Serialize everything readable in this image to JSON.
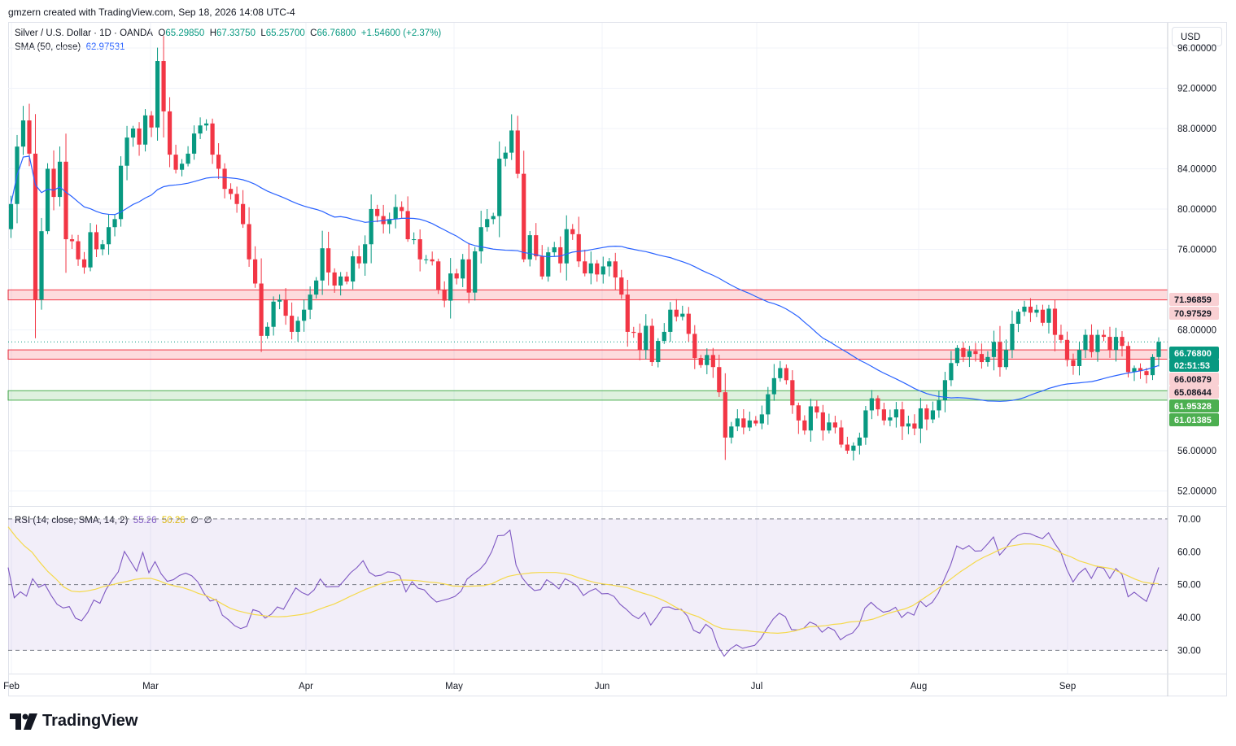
{
  "header": {
    "credit": "gmzern created with TradingView.com, Sep 18, 2026 14:08 UTC-4"
  },
  "legend": {
    "symbol": "Silver / U.S. Dollar · 1D · OANDA",
    "open_label": "O",
    "open": "65.29850",
    "high_label": "H",
    "high": "67.33750",
    "low_label": "L",
    "low": "65.25700",
    "close_label": "C",
    "close": "66.76800",
    "change": "+1.54600 (+2.37%)",
    "sma_label": "SMA (50, close)",
    "sma_value": "62.97531",
    "rsi_label": "RSI (14, close, SMA, 14, 2)",
    "rsi_value": "55.26",
    "rsi_sma_value": "50.26",
    "rsi_extra1": "∅",
    "rsi_extra2": "∅"
  },
  "currency": "USD",
  "brand": "TradingView",
  "colors": {
    "up": "#089981",
    "down": "#f23645",
    "sma": "#2962ff",
    "rsi": "#7e57c2",
    "rsi_sma": "#f5d94a",
    "resistance_zone": "#f23645",
    "support_zone": "#4caf50"
  },
  "chart_data": [
    {
      "type": "candlestick",
      "title": "Silver / U.S. Dollar · 1D · OANDA",
      "x_tick_labels": [
        "Feb",
        "Mar",
        "Apr",
        "May",
        "Jun",
        "Jul",
        "Aug",
        "Sep"
      ],
      "y_tick_labels": [
        "96.00000",
        "92.00000",
        "88.00000",
        "84.00000",
        "80.00000",
        "76.00000",
        "68.00000",
        "56.00000",
        "52.00000"
      ],
      "ylim": [
        50.5,
        98.5
      ],
      "closes": [
        80.5,
        86.2,
        88.8,
        85.5,
        71.0,
        77.8,
        84.0,
        81.2,
        84.7,
        77.0,
        76.8,
        75.0,
        74.2,
        77.7,
        76.0,
        76.5,
        78.2,
        79.0,
        84.3,
        87.1,
        88.0,
        86.4,
        89.3,
        88.1,
        94.7,
        89.7,
        85.4,
        83.9,
        84.5,
        85.5,
        87.5,
        88.3,
        88.5,
        85.4,
        84.0,
        82.0,
        81.5,
        80.5,
        78.5,
        75.0,
        72.6,
        67.4,
        68.3,
        70.8,
        71.0,
        69.4,
        67.8,
        68.9,
        70.0,
        71.5,
        72.9,
        76.1,
        73.7,
        72.4,
        73.3,
        72.8,
        75.3,
        74.6,
        76.5,
        80.0,
        79.3,
        78.5,
        79.0,
        80.2,
        79.8,
        77.0,
        77.0,
        75.0,
        75.0,
        74.8,
        72.0,
        70.9,
        73.6,
        73.1,
        75.0,
        71.7,
        75.8,
        78.2,
        79.0,
        79.3,
        85.0,
        85.6,
        87.8,
        83.5,
        75.0,
        77.4,
        75.3,
        73.3,
        75.7,
        76.2,
        74.6,
        78.0,
        77.5,
        74.8,
        73.6,
        74.6,
        73.5,
        74.3,
        74.8,
        73.2,
        71.5,
        67.8,
        67.7,
        66.0,
        68.4,
        64.8,
        66.9,
        67.8,
        70.0,
        69.3,
        69.6,
        67.6,
        65.2,
        64.5,
        65.5,
        64.3,
        61.8,
        57.3,
        58.4,
        59.2,
        58.3,
        59.0,
        58.7,
        59.6,
        61.6,
        63.2,
        64.2,
        63.0,
        60.5,
        59.0,
        58.0,
        60.4,
        59.8,
        58.0,
        58.8,
        58.3,
        56.6,
        56.0,
        56.5,
        57.3,
        60.0,
        61.2,
        60.1,
        59.0,
        59.3,
        60.1,
        58.4,
        58.7,
        58.2,
        60.2,
        59.1,
        60.0,
        61.0,
        63.0,
        64.7,
        66.2,
        65.3,
        65.9,
        65.6,
        64.8,
        65.3,
        66.8,
        64.3,
        66.0,
        68.6,
        69.8,
        70.3,
        69.7,
        70.0,
        68.7,
        70.1,
        67.5,
        67.0,
        65.0,
        64.4,
        66.0,
        67.5,
        65.8,
        67.5,
        67.3,
        66.0,
        67.3,
        66.4,
        63.8,
        64.2,
        63.9,
        63.5,
        65.3,
        66.8
      ]
    },
    {
      "type": "line",
      "series": [
        {
          "name": "SMA (50, close)"
        }
      ]
    },
    {
      "type": "line",
      "title": "RSI (14, close, SMA, 14, 2)",
      "y_tick_labels": [
        "70.00",
        "60.00",
        "50.00",
        "40.00",
        "30.00"
      ],
      "ylim": [
        22.9,
        73.7
      ],
      "bands": [
        30,
        50,
        70
      ],
      "series": [
        {
          "name": "RSI",
          "values": [
            55.2,
            46.0,
            47.8,
            46.5,
            51.8,
            49.2,
            50.1,
            46.8,
            44.0,
            42.9,
            43.3,
            39.8,
            39.0,
            41.5,
            45.3,
            44.3,
            48.5,
            51.4,
            53.9,
            60.1,
            57.1,
            54.1,
            59.8,
            53.6,
            57.0,
            53.3,
            51.0,
            51.5,
            52.8,
            53.5,
            52.7,
            50.8,
            47.4,
            45.0,
            45.5,
            40.7,
            39.3,
            37.5,
            36.6,
            37.3,
            42.4,
            41.8,
            39.8,
            41.0,
            43.2,
            42.5,
            45.8,
            49.0,
            47.6,
            46.8,
            48.4,
            51.7,
            49.3,
            49.4,
            49.4,
            51.5,
            53.7,
            55.2,
            57.3,
            53.8,
            52.6,
            52.9,
            53.9,
            53.7,
            52.7,
            47.8,
            50.9,
            48.9,
            48.4,
            46.3,
            44.7,
            45.2,
            45.7,
            46.4,
            48.0,
            51.7,
            53.2,
            54.5,
            56.6,
            60.0,
            64.9,
            65.0,
            66.6,
            55.9,
            52.1,
            49.8,
            48.2,
            48.5,
            51.5,
            50.3,
            48.7,
            51.8,
            50.8,
            49.5,
            46.7,
            48.0,
            48.8,
            47.2,
            47.3,
            46.4,
            44.0,
            42.5,
            40.7,
            39.6,
            41.5,
            37.7,
            40.2,
            43.1,
            43.2,
            42.4,
            42.5,
            40.4,
            36.1,
            35.2,
            37.9,
            36.5,
            31.2,
            28.2,
            30.4,
            31.7,
            30.6,
            31.1,
            31.5,
            33.6,
            36.7,
            39.5,
            41.3,
            40.2,
            36.3,
            36.2,
            36.7,
            38.6,
            37.8,
            35.5,
            37.0,
            36.1,
            33.2,
            34.5,
            35.3,
            37.6,
            42.8,
            44.6,
            42.9,
            41.6,
            42.0,
            43.1,
            40.0,
            41.6,
            40.7,
            45.1,
            43.3,
            44.6,
            47.4,
            51.8,
            56.0,
            61.8,
            60.8,
            61.9,
            60.2,
            60.3,
            62.3,
            64.5,
            59.0,
            61.1,
            63.6,
            65.0,
            65.7,
            65.5,
            64.7,
            64.0,
            65.8,
            62.6,
            59.9,
            54.6,
            50.8,
            53.5,
            55.0,
            51.9,
            55.4,
            55.0,
            51.9,
            54.9,
            53.1,
            46.3,
            47.7,
            46.2,
            44.9,
            49.8,
            55.26
          ]
        },
        {
          "name": "SMA",
          "values": [
            67.6,
            64.5,
            61.9,
            59.9,
            56.8,
            54.0,
            51.8,
            49.3,
            48.0,
            47.8,
            48.1,
            48.6,
            49.4,
            49.9,
            50.5,
            51.0,
            51.6,
            51.9,
            51.9,
            51.2,
            50.2,
            49.6,
            49.1,
            48.3,
            47.3,
            46.6,
            45.5,
            44.1,
            42.8,
            42.0,
            41.4,
            40.9,
            40.6,
            40.3,
            40.2,
            40.3,
            40.6,
            40.9,
            41.4,
            42.3,
            43.2,
            44.0,
            45.1,
            46.3,
            47.4,
            48.5,
            49.4,
            50.3,
            50.9,
            51.4,
            51.4,
            51.3,
            51.1,
            50.8,
            50.6,
            50.2,
            49.6,
            49.5,
            49.5,
            49.6,
            49.7,
            50.3,
            51.5,
            52.5,
            53.0,
            53.3,
            53.6,
            53.7,
            53.7,
            53.7,
            53.4,
            52.9,
            52.0,
            51.3,
            50.6,
            50.2,
            49.9,
            49.5,
            49.1,
            48.2,
            47.4,
            46.7,
            45.8,
            44.7,
            43.3,
            42.0,
            41.0,
            40.2,
            38.9,
            37.5,
            36.6,
            36.4,
            36.2,
            36.0,
            35.7,
            35.5,
            35.3,
            35.2,
            35.4,
            35.8,
            36.5,
            37.2,
            37.3,
            37.5,
            37.9,
            38.1,
            38.6,
            38.8,
            39.0,
            39.5,
            40.4,
            41.3,
            42.0,
            42.6,
            43.6,
            45.2,
            46.8,
            48.5,
            50.2,
            52.1,
            53.9,
            55.5,
            57.1,
            58.4,
            59.5,
            60.7,
            61.6,
            62.0,
            62.4,
            62.4,
            62.2,
            61.6,
            60.5,
            59.3,
            58.4,
            57.2,
            56.5,
            55.7,
            55.3,
            54.9,
            53.9,
            52.8,
            51.7,
            50.8,
            50.4,
            50.3
          ]
        }
      ]
    }
  ],
  "price_labels": [
    {
      "value": "71.96859",
      "kind": "resistance"
    },
    {
      "value": "70.97529",
      "kind": "resistance"
    },
    {
      "value": "66.76800",
      "kind": "last"
    },
    {
      "value": "02:51:53",
      "kind": "countdown"
    },
    {
      "value": "66.00879",
      "kind": "resistance"
    },
    {
      "value": "65.08644",
      "kind": "resistance"
    },
    {
      "value": "61.95328",
      "kind": "support"
    },
    {
      "value": "61.01385",
      "kind": "support"
    }
  ],
  "zones": [
    {
      "name": "upper-resistance-zone",
      "top": 71.96859,
      "bottom": 70.97529,
      "kind": "resistance"
    },
    {
      "name": "mid-resistance-zone",
      "top": 66.00879,
      "bottom": 65.08644,
      "kind": "resistance"
    },
    {
      "name": "support-zone",
      "top": 61.95328,
      "bottom": 61.01385,
      "kind": "support"
    }
  ]
}
